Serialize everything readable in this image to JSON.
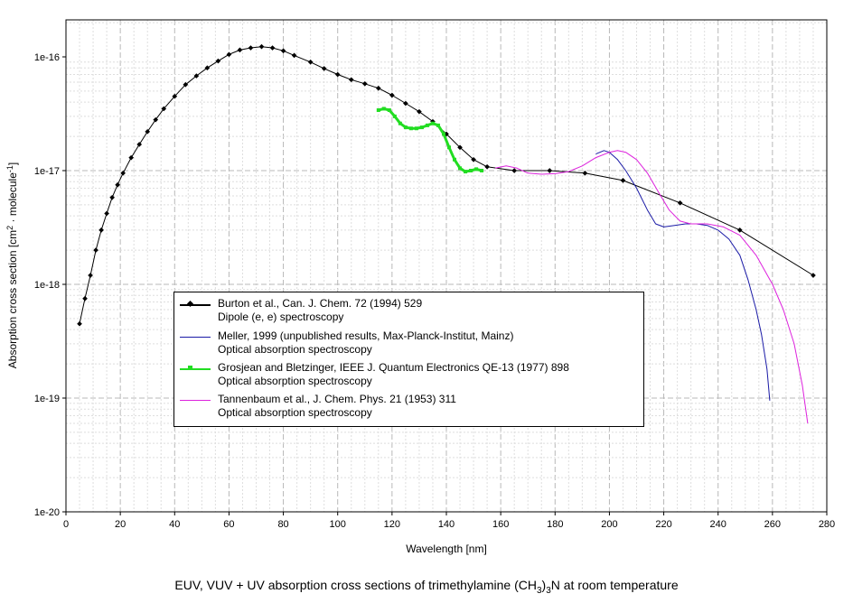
{
  "chart_data": {
    "type": "line",
    "yscale": "log",
    "xlim": [
      0,
      280
    ],
    "ylim": [
      1e-20,
      3e-16
    ],
    "xlabel": "Wavelength [nm]",
    "ylabel": "Absorption cross section [cm",
    "ylabel_sup1": "2",
    "ylabel_mid": " · molecule",
    "ylabel_sup2": "-1",
    "ylabel_end": "]",
    "x_ticks": [
      0,
      20,
      40,
      60,
      80,
      100,
      120,
      140,
      160,
      180,
      200,
      220,
      240,
      260,
      280
    ],
    "y_ticks": [
      {
        "value": 1e-20,
        "label": "1e-20"
      },
      {
        "value": 1e-19,
        "label": "1e-19"
      },
      {
        "value": 1e-18,
        "label": "1e-18"
      },
      {
        "value": 1e-17,
        "label": "1e-17"
      },
      {
        "value": 1e-16,
        "label": "1e-16"
      }
    ],
    "grid": true,
    "series": [
      {
        "name": "Burton et al., Can. J. Chem. 72 (1994) 529",
        "subtitle": "Dipole (e, e) spectroscopy",
        "color": "#000000",
        "marker": "diamond",
        "x": [
          5,
          7,
          9,
          11,
          13,
          15,
          17,
          19,
          21,
          24,
          27,
          30,
          33,
          36,
          40,
          44,
          48,
          52,
          56,
          60,
          64,
          68,
          72,
          76,
          80,
          84,
          90,
          95,
          100,
          105,
          110,
          115,
          120,
          125,
          130,
          135,
          140,
          145,
          150,
          155,
          165,
          178,
          191,
          205,
          226,
          248,
          275
        ],
        "y": [
          4.5e-19,
          7.5e-19,
          1.2e-18,
          2e-18,
          3e-18,
          4.2e-18,
          5.8e-18,
          7.5e-18,
          9.5e-18,
          1.3e-17,
          1.7e-17,
          2.2e-17,
          2.8e-17,
          3.5e-17,
          4.5e-17,
          5.7e-17,
          6.8e-17,
          8e-17,
          9.2e-17,
          1.05e-16,
          1.15e-16,
          1.2e-16,
          1.23e-16,
          1.2e-16,
          1.13e-16,
          1.03e-16,
          9e-17,
          7.9e-17,
          7e-17,
          6.3e-17,
          5.8e-17,
          5.3e-17,
          4.6e-17,
          3.9e-17,
          3.3e-17,
          2.7e-17,
          2.1e-17,
          1.6e-17,
          1.25e-17,
          1.08e-17,
          1e-17,
          1e-17,
          9.5e-18,
          8.2e-18,
          5.2e-18,
          3e-18,
          1.2e-18
        ]
      },
      {
        "name": "Meller, 1999 (unpublished results, Max-Planck-Institut, Mainz)",
        "subtitle": "Optical absorption spectroscopy",
        "color": "#1a1aa6",
        "marker": "none",
        "x": [
          195,
          198,
          200,
          203,
          206,
          210,
          214,
          217,
          220,
          224,
          228,
          232,
          236,
          240,
          244,
          248,
          251,
          254,
          256,
          258,
          259
        ],
        "y": [
          1.4e-17,
          1.5e-17,
          1.45e-17,
          1.25e-17,
          1e-17,
          7e-18,
          4.5e-18,
          3.4e-18,
          3.2e-18,
          3.3e-18,
          3.4e-18,
          3.4e-18,
          3.3e-18,
          3e-18,
          2.5e-18,
          1.8e-18,
          1.1e-18,
          6e-19,
          3.6e-19,
          1.8e-19,
          9.5e-20
        ]
      },
      {
        "name": "Grosjean and Bletzinger, IEEE J. Quantum Electronics QE-13 (1977) 898",
        "subtitle": "Optical absorption spectroscopy",
        "color": "#22dd22",
        "marker": "square",
        "x": [
          115,
          117,
          119,
          121,
          123,
          125,
          127,
          129,
          131,
          133,
          135,
          137,
          139,
          141,
          143,
          145,
          147,
          149,
          151,
          153
        ],
        "y": [
          3.4e-17,
          3.5e-17,
          3.4e-17,
          3e-17,
          2.6e-17,
          2.4e-17,
          2.35e-17,
          2.35e-17,
          2.4e-17,
          2.5e-17,
          2.6e-17,
          2.5e-17,
          2.1e-17,
          1.6e-17,
          1.25e-17,
          1.05e-17,
          9.8e-18,
          1e-17,
          1.03e-17,
          1e-17
        ]
      },
      {
        "name": "Tannenbaum et al., J. Chem. Phys. 21 (1953) 311",
        "subtitle": "Optical absorption spectroscopy",
        "color": "#dd22dd",
        "marker": "none",
        "x": [
          158,
          162,
          166,
          170,
          175,
          180,
          185,
          190,
          195,
          200,
          203,
          206,
          210,
          214,
          218,
          222,
          226,
          230,
          236,
          242,
          248,
          254,
          260,
          264,
          268,
          271,
          273
        ],
        "y": [
          1.05e-17,
          1.1e-17,
          1.05e-17,
          9.5e-18,
          9.3e-18,
          9.4e-18,
          9.8e-18,
          1.1e-17,
          1.3e-17,
          1.45e-17,
          1.5e-17,
          1.45e-17,
          1.25e-17,
          9.5e-18,
          6.5e-18,
          4.5e-18,
          3.6e-18,
          3.4e-18,
          3.4e-18,
          3.2e-18,
          2.7e-18,
          1.8e-18,
          1e-18,
          6e-19,
          3e-19,
          1.3e-19,
          6e-20
        ]
      }
    ]
  },
  "caption": {
    "prefix": "EUV, VUV + UV absorption cross sections of trimethylamine (CH",
    "sub": "3",
    "mid": ")",
    "sub2": "3",
    "suffix": "N at room temperature"
  }
}
